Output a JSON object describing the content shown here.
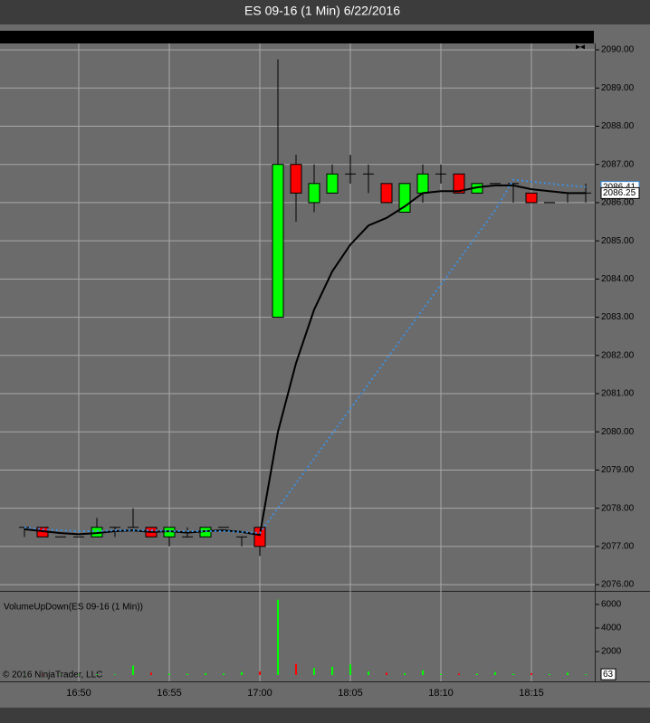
{
  "window_title": "ES 09-16 (1 Min)  6/22/2016",
  "footer": "© 2016 NinjaTrader, LLC",
  "chart_data": [
    {
      "type": "candlestick",
      "categories": [
        null,
        null,
        null,
        "16:50",
        null,
        null,
        null,
        null,
        "16:55",
        null,
        null,
        null,
        null,
        "17:00",
        null,
        null,
        null,
        null,
        "18:05",
        null,
        null,
        null,
        null,
        "18:10",
        null,
        null,
        null,
        null,
        "18:15",
        null,
        null,
        null
      ],
      "open": [
        2077.5,
        2077.5,
        2077.25,
        2077.25,
        2077.25,
        2077.5,
        2077.5,
        2077.5,
        2077.25,
        2077.25,
        2077.25,
        2077.5,
        2077.25,
        2077.5,
        2083,
        2087,
        2086,
        2086.25,
        2086.75,
        2086.75,
        2086.5,
        2085.75,
        2086.25,
        2086.75,
        2086.75,
        2086.25,
        2086.5,
        2086.5,
        2086.25,
        2086,
        2086.25,
        2086.25
      ],
      "high": [
        2077.5,
        2077.5,
        2077.25,
        2077.25,
        2077.75,
        2077.5,
        2078,
        2077.5,
        2077.5,
        2077.5,
        2077.5,
        2077.5,
        2077.25,
        2077.5,
        2089.75,
        2087.25,
        2087,
        2087,
        2087.25,
        2087,
        2086.5,
        2086.5,
        2087,
        2087,
        2086.75,
        2086.5,
        2086.5,
        2086.5,
        2086.25,
        2086,
        2086.25,
        2086.5
      ],
      "low": [
        2077.25,
        2077.25,
        2077.25,
        2077.25,
        2077.25,
        2077.25,
        2077.5,
        2077.25,
        2077,
        2077.25,
        2077.25,
        2077.5,
        2077,
        2076.75,
        2083,
        2085.5,
        2085.75,
        2086.25,
        2086.5,
        2086.25,
        2086,
        2085.75,
        2086,
        2086.5,
        2086.25,
        2086.25,
        2086.5,
        2086,
        2086,
        2086,
        2086,
        2086
      ],
      "close": [
        2077.5,
        2077.25,
        2077.25,
        2077.25,
        2077.5,
        2077.5,
        2077.5,
        2077.25,
        2077.5,
        2077.25,
        2077.5,
        2077.5,
        2077.25,
        2077,
        2087,
        2086.25,
        2086.5,
        2086.75,
        2086.75,
        2086.75,
        2086,
        2086.5,
        2086.75,
        2086.75,
        2086.25,
        2086.5,
        2086.5,
        2086.5,
        2086,
        2086,
        2086.25,
        2086.25
      ],
      "up_color": "#00ff00",
      "down_color": "#ff0000",
      "series": [
        {
          "color": "#000000",
          "dashed": false,
          "values": [
            2077.45,
            2077.4,
            2077.35,
            2077.32,
            2077.35,
            2077.4,
            2077.42,
            2077.38,
            2077.4,
            2077.36,
            2077.4,
            2077.42,
            2077.38,
            2077.3,
            2080,
            2081.8,
            2083.2,
            2084.2,
            2084.9,
            2085.4,
            2085.6,
            2085.9,
            2086.25,
            2086.3,
            2086.3,
            2086.4,
            2086.45,
            2086.45,
            2086.35,
            2086.3,
            2086.25,
            2086.25
          ]
        },
        {
          "color": "#3d8fe0",
          "dashed": true,
          "values": [
            2077.5,
            2077.45,
            2077.42,
            2077.4,
            2077.4,
            2077.42,
            2077.42,
            2077.42,
            2077.4,
            2077.4,
            2077.4,
            2077.4,
            2077.38,
            2077.35,
            2078,
            2078.65,
            2079.3,
            2079.95,
            2080.6,
            2081.25,
            2081.9,
            2082.55,
            2083.2,
            2083.85,
            2084.5,
            2085.15,
            2085.8,
            2086.6,
            2086.55,
            2086.5,
            2086.45,
            2086.41
          ]
        }
      ],
      "ylim": [
        2075.86,
        2090.12
      ],
      "yticks": [
        {
          "value": 2076,
          "label": "2076.00"
        },
        {
          "value": 2077,
          "label": "2077.00"
        },
        {
          "value": 2078,
          "label": "2078.00"
        },
        {
          "value": 2079,
          "label": "2079.00"
        },
        {
          "value": 2080,
          "label": "2080.00"
        },
        {
          "value": 2081,
          "label": "2081.00"
        },
        {
          "value": 2082,
          "label": "2082.00"
        },
        {
          "value": 2083,
          "label": "2083.00"
        },
        {
          "value": 2084,
          "label": "2084.00"
        },
        {
          "value": 2085,
          "label": "2085.00"
        },
        {
          "value": 2086,
          "label": "2086.00"
        },
        {
          "value": 2087,
          "label": "2087.00"
        },
        {
          "value": 2088,
          "label": "2088.00"
        },
        {
          "value": 2089,
          "label": "2089.00"
        },
        {
          "value": 2090,
          "label": "2090.00"
        }
      ],
      "grid": true
    },
    {
      "type": "bar",
      "title": "VolumeUpDown(ES 09-16 (1 Min))",
      "values": [
        20,
        30,
        30,
        40,
        60,
        50,
        800,
        200,
        120,
        100,
        150,
        120,
        250,
        300,
        6400,
        950,
        600,
        700,
        900,
        300,
        200,
        150,
        400,
        100,
        120,
        100,
        250,
        100,
        150,
        80,
        200,
        63
      ],
      "ylim": [
        0,
        7000
      ],
      "yticks": [
        2000,
        4000,
        6000
      ],
      "grid": true
    }
  ]
}
